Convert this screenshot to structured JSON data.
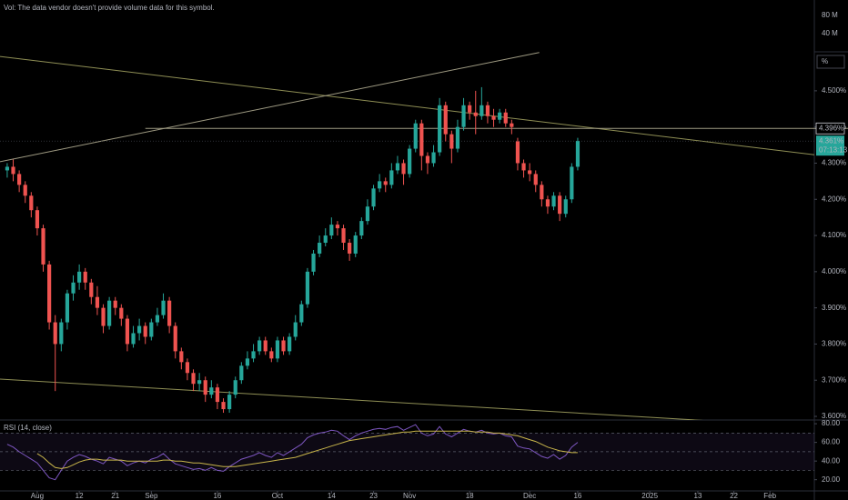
{
  "chart_data": [
    {
      "type": "candlestick",
      "note": "Vol: The data vendor doesn't provide volume data for this symbol.",
      "volume_lim": [
        0,
        114000000
      ],
      "volume_ticks": [
        {
          "value": 80000000,
          "label": "80 M"
        },
        {
          "value": 40000000,
          "label": "40 M"
        }
      ],
      "unit_box": "%",
      "xlim": [
        -1.2,
        134.4
      ],
      "ylim": [
        3.59,
        4.751
      ],
      "yticks": [
        {
          "value": 3.6,
          "label": "3.600%"
        },
        {
          "value": 3.7,
          "label": "3.700%"
        },
        {
          "value": 3.8,
          "label": "3.800%"
        },
        {
          "value": 3.9,
          "label": "3.900%"
        },
        {
          "value": 4.0,
          "label": "4.000%"
        },
        {
          "value": 4.1,
          "label": "4.100%"
        },
        {
          "value": 4.2,
          "label": "4.200%"
        },
        {
          "value": 4.3,
          "label": "4.300%"
        },
        {
          "value": 4.4,
          "label": "4.400%"
        },
        {
          "value": 4.5,
          "label": "4.500%"
        }
      ],
      "up_color": "#26a69a",
      "down_color": "#ef5350",
      "open": [
        4.28,
        4.29,
        4.27,
        4.24,
        4.21,
        4.17,
        4.12,
        4.02,
        3.86,
        3.8,
        3.86,
        3.94,
        3.97,
        4.0,
        3.97,
        3.93,
        3.9,
        3.85,
        3.92,
        3.9,
        3.87,
        3.8,
        3.83,
        3.85,
        3.82,
        3.86,
        3.88,
        3.92,
        3.85,
        3.78,
        3.75,
        3.72,
        3.69,
        3.7,
        3.66,
        3.68,
        3.64,
        3.62,
        3.66,
        3.7,
        3.74,
        3.76,
        3.78,
        3.81,
        3.78,
        3.76,
        3.81,
        3.78,
        3.82,
        3.86,
        3.91,
        4.0,
        4.05,
        4.08,
        4.1,
        4.13,
        4.12,
        4.08,
        4.05,
        4.1,
        4.14,
        4.18,
        4.23,
        4.25,
        4.24,
        4.28,
        4.3,
        4.27,
        4.34,
        4.41,
        4.32,
        4.3,
        4.33,
        4.46,
        4.38,
        4.34,
        4.4,
        4.46,
        4.44,
        4.43,
        4.46,
        4.43,
        4.42,
        4.44,
        4.41,
        4.36,
        4.3,
        4.28,
        4.27,
        4.24,
        4.2,
        4.18,
        4.21,
        4.16,
        4.2,
        4.29
      ],
      "high": [
        4.3,
        4.31,
        4.28,
        4.25,
        4.22,
        4.18,
        4.13,
        4.03,
        3.88,
        3.87,
        3.95,
        3.99,
        4.02,
        4.01,
        3.98,
        3.96,
        3.91,
        3.93,
        3.93,
        3.91,
        3.88,
        3.85,
        3.87,
        3.86,
        3.87,
        3.9,
        3.94,
        3.93,
        3.86,
        3.79,
        3.76,
        3.73,
        3.72,
        3.71,
        3.7,
        3.69,
        3.65,
        3.67,
        3.71,
        3.75,
        3.78,
        3.8,
        3.82,
        3.82,
        3.79,
        3.82,
        3.82,
        3.83,
        3.88,
        3.92,
        4.01,
        4.06,
        4.1,
        4.12,
        4.15,
        4.14,
        4.13,
        4.09,
        4.11,
        4.15,
        4.2,
        4.24,
        4.27,
        4.26,
        4.3,
        4.32,
        4.31,
        4.35,
        4.42,
        4.42,
        4.33,
        4.35,
        4.48,
        4.47,
        4.39,
        4.42,
        4.48,
        4.47,
        4.5,
        4.51,
        4.47,
        4.45,
        4.45,
        4.45,
        4.42,
        4.37,
        4.31,
        4.3,
        4.28,
        4.25,
        4.21,
        4.22,
        4.22,
        4.21,
        4.3,
        4.37
      ],
      "low": [
        4.26,
        4.25,
        4.22,
        4.19,
        4.15,
        4.1,
        4.0,
        3.84,
        3.67,
        3.78,
        3.84,
        3.92,
        3.95,
        3.95,
        3.91,
        3.88,
        3.83,
        3.84,
        3.88,
        3.85,
        3.78,
        3.79,
        3.81,
        3.8,
        3.81,
        3.85,
        3.87,
        3.83,
        3.76,
        3.73,
        3.7,
        3.67,
        3.67,
        3.64,
        3.65,
        3.62,
        3.61,
        3.61,
        3.65,
        3.69,
        3.73,
        3.75,
        3.77,
        3.77,
        3.75,
        3.75,
        3.77,
        3.77,
        3.81,
        3.85,
        3.9,
        3.99,
        4.04,
        4.07,
        4.09,
        4.1,
        4.06,
        4.03,
        4.04,
        4.09,
        4.13,
        4.17,
        4.22,
        4.22,
        4.23,
        4.27,
        4.24,
        4.26,
        4.33,
        4.28,
        4.27,
        4.29,
        4.32,
        4.36,
        4.3,
        4.33,
        4.39,
        4.42,
        4.38,
        4.42,
        4.41,
        4.4,
        4.41,
        4.4,
        4.38,
        4.28,
        4.26,
        4.25,
        4.22,
        4.18,
        4.16,
        4.17,
        4.14,
        4.15,
        4.19,
        4.28
      ],
      "close": [
        4.29,
        4.27,
        4.24,
        4.21,
        4.17,
        4.12,
        4.02,
        3.86,
        3.8,
        3.86,
        3.94,
        3.97,
        4.0,
        3.97,
        3.93,
        3.9,
        3.85,
        3.92,
        3.9,
        3.87,
        3.8,
        3.83,
        3.85,
        3.82,
        3.86,
        3.88,
        3.92,
        3.85,
        3.78,
        3.75,
        3.72,
        3.69,
        3.7,
        3.66,
        3.68,
        3.64,
        3.62,
        3.66,
        3.7,
        3.74,
        3.76,
        3.78,
        3.81,
        3.78,
        3.76,
        3.81,
        3.78,
        3.82,
        3.86,
        3.91,
        4.0,
        4.05,
        4.08,
        4.1,
        4.13,
        4.12,
        4.08,
        4.05,
        4.1,
        4.14,
        4.18,
        4.23,
        4.25,
        4.24,
        4.28,
        4.3,
        4.27,
        4.34,
        4.41,
        4.32,
        4.3,
        4.33,
        4.46,
        4.38,
        4.34,
        4.4,
        4.46,
        4.44,
        4.43,
        4.46,
        4.43,
        4.42,
        4.44,
        4.41,
        4.4,
        4.3,
        4.28,
        4.27,
        4.24,
        4.2,
        4.18,
        4.21,
        4.16,
        4.2,
        4.29,
        4.361
      ],
      "trendlines": [
        {
          "x": [
            -1.2,
            140
          ],
          "y": [
            4.595,
            4.312
          ],
          "color": "#8f8f55"
        },
        {
          "x": [
            -1.2,
            88.6
          ],
          "y": [
            4.304,
            4.606
          ],
          "color": "#9e9a82"
        },
        {
          "x": [
            -1.2,
            116.7
          ],
          "y": [
            3.703,
            3.588
          ],
          "color": "#8f8f55"
        }
      ],
      "hlines": [
        {
          "value": 4.396,
          "label": "4.396%",
          "x_start": 23
        }
      ],
      "last_price": {
        "value": 4.361,
        "label": "4.361%"
      },
      "countdown": "07:13:13"
    },
    {
      "type": "line",
      "title": "RSI (14, close)",
      "xlim": [
        -1.2,
        134.4
      ],
      "ylim": [
        8,
        84
      ],
      "yticks": [
        {
          "value": 20,
          "label": "20.00"
        },
        {
          "value": 40,
          "label": "40.00"
        },
        {
          "value": 60,
          "label": "60.00"
        },
        {
          "value": 80,
          "label": "80.00"
        }
      ],
      "levels": [
        30,
        50,
        70
      ],
      "band": [
        30,
        70
      ],
      "xticks": [
        {
          "value": 5,
          "label": "Aug"
        },
        {
          "value": 12,
          "label": "12"
        },
        {
          "value": 18,
          "label": "21"
        },
        {
          "value": 24,
          "label": "Sep"
        },
        {
          "value": 35,
          "label": "16"
        },
        {
          "value": 45,
          "label": "Oct"
        },
        {
          "value": 54,
          "label": "14"
        },
        {
          "value": 61,
          "label": "23"
        },
        {
          "value": 67,
          "label": "Nov"
        },
        {
          "value": 77,
          "label": "18"
        },
        {
          "value": 87,
          "label": "Dec"
        },
        {
          "value": 95,
          "label": "16"
        },
        {
          "value": 107,
          "label": "2025"
        },
        {
          "value": 115,
          "label": "13"
        },
        {
          "value": 121,
          "label": "22"
        },
        {
          "value": 127,
          "label": "Feb"
        }
      ],
      "series": [
        {
          "color": "#7e57c2",
          "values": [
            58,
            55,
            50,
            46,
            42,
            38,
            30,
            22,
            20,
            30,
            40,
            44,
            47,
            45,
            42,
            40,
            37,
            44,
            42,
            40,
            35,
            38,
            40,
            38,
            42,
            44,
            48,
            42,
            37,
            35,
            33,
            31,
            32,
            30,
            33,
            30,
            29,
            34,
            38,
            42,
            44,
            46,
            49,
            46,
            44,
            49,
            46,
            50,
            54,
            58,
            65,
            68,
            70,
            71,
            73,
            72,
            67,
            63,
            67,
            70,
            72,
            74,
            75,
            74,
            76,
            77,
            73,
            76,
            79,
            70,
            67,
            69,
            77,
            69,
            66,
            70,
            74,
            72,
            71,
            73,
            70,
            69,
            70,
            67,
            66,
            56,
            54,
            53,
            49,
            45,
            43,
            47,
            42,
            46,
            55,
            60
          ]
        },
        {
          "color": "#c9b64b",
          "values": [
            null,
            null,
            null,
            null,
            null,
            48,
            44,
            38,
            33,
            32,
            33,
            36,
            39,
            41,
            42,
            42,
            41,
            41,
            41,
            41,
            40,
            40,
            40,
            40,
            40,
            40,
            41,
            41,
            40,
            40,
            39,
            38,
            38,
            37,
            36,
            35,
            34,
            34,
            34,
            35,
            36,
            37,
            38,
            39,
            40,
            41,
            42,
            43,
            44,
            46,
            48,
            50,
            52,
            54,
            56,
            58,
            60,
            62,
            63,
            64,
            65,
            66,
            67,
            68,
            69,
            70,
            71,
            71,
            72,
            72,
            72,
            72,
            72,
            72,
            72,
            72,
            72,
            72,
            71,
            71,
            71,
            70,
            70,
            69,
            68,
            67,
            65,
            63,
            61,
            58,
            55,
            53,
            51,
            50,
            49,
            49
          ]
        }
      ]
    }
  ]
}
